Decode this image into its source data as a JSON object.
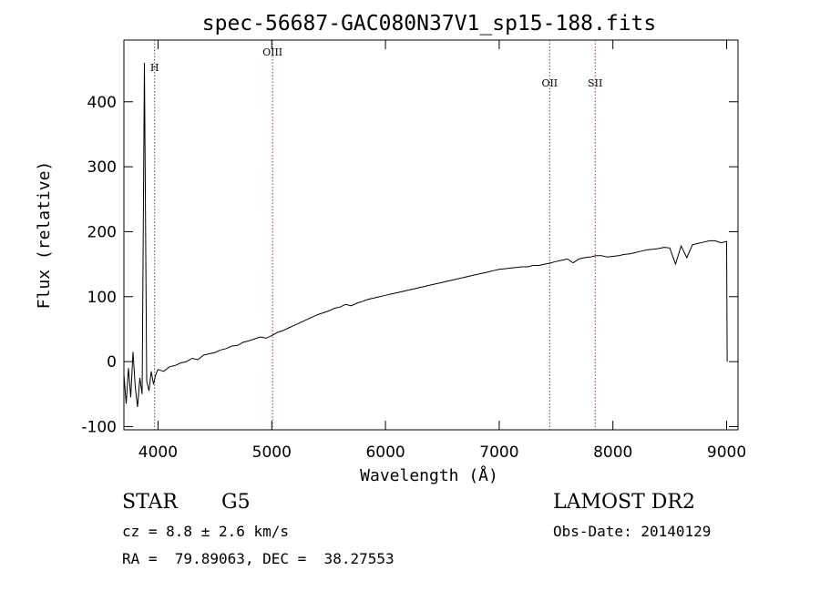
{
  "chart_data": {
    "type": "line",
    "title": "spec-56687-GAC080N37V1_sp15-188.fits",
    "xlabel": "Wavelength (Å)",
    "ylabel": "Flux (relative)",
    "xlim": [
      3700,
      9100
    ],
    "ylim": [
      -105,
      495
    ],
    "x_ticks": [
      4000,
      5000,
      6000,
      7000,
      8000,
      9000
    ],
    "y_ticks": [
      -100,
      0,
      100,
      200,
      300,
      400
    ],
    "grid": false,
    "line_color": "#000000",
    "reference_line_color": "#b22222",
    "reference_lines": [
      {
        "label": "H",
        "wavelength": 3970
      },
      {
        "label": "OIII",
        "wavelength": 5007
      },
      {
        "label": "OII",
        "wavelength": 7444
      },
      {
        "label": "SII",
        "wavelength": 7844
      }
    ],
    "series": [
      {
        "x": [
          3700,
          3720,
          3740,
          3760,
          3780,
          3800,
          3820,
          3840,
          3860,
          3880,
          3900,
          3920,
          3940,
          3960,
          3980,
          4000,
          4050,
          4100,
          4150,
          4200,
          4250,
          4300,
          4350,
          4400,
          4450,
          4500,
          4550,
          4600,
          4650,
          4700,
          4750,
          4800,
          4850,
          4900,
          4950,
          5000,
          5050,
          5100,
          5150,
          5200,
          5250,
          5300,
          5350,
          5400,
          5450,
          5500,
          5550,
          5600,
          5650,
          5700,
          5750,
          5800,
          5850,
          5900,
          5950,
          6000,
          6050,
          6100,
          6150,
          6200,
          6250,
          6300,
          6350,
          6400,
          6450,
          6500,
          6550,
          6600,
          6650,
          6700,
          6750,
          6800,
          6850,
          6900,
          6950,
          7000,
          7050,
          7100,
          7150,
          7200,
          7250,
          7300,
          7350,
          7400,
          7450,
          7500,
          7550,
          7600,
          7650,
          7700,
          7750,
          7800,
          7850,
          7900,
          7950,
          8000,
          8050,
          8100,
          8150,
          8200,
          8250,
          8300,
          8350,
          8400,
          8450,
          8500,
          8550,
          8600,
          8650,
          8700,
          8750,
          8800,
          8850,
          8900,
          8950,
          9000,
          9005
        ],
        "y": [
          -20,
          -65,
          -10,
          -55,
          15,
          -40,
          -70,
          -25,
          -50,
          460,
          -30,
          -45,
          -15,
          -35,
          -20,
          -12,
          -15,
          -8,
          -6,
          -2,
          0,
          5,
          3,
          10,
          12,
          14,
          18,
          20,
          24,
          25,
          30,
          32,
          35,
          38,
          36,
          40,
          45,
          48,
          52,
          56,
          60,
          64,
          68,
          72,
          75,
          78,
          82,
          84,
          88,
          86,
          90,
          93,
          96,
          98,
          100,
          102,
          104,
          106,
          108,
          110,
          112,
          114,
          116,
          118,
          120,
          122,
          124,
          126,
          128,
          130,
          132,
          134,
          136,
          138,
          140,
          142,
          143,
          144,
          145,
          146,
          146,
          148,
          148,
          150,
          152,
          154,
          156,
          158,
          152,
          158,
          160,
          161,
          163,
          163,
          161,
          162,
          163,
          165,
          166,
          168,
          170,
          172,
          173,
          174,
          176,
          175,
          150,
          178,
          160,
          180,
          182,
          184,
          186,
          186,
          183,
          185,
          0
        ]
      }
    ]
  },
  "info": {
    "class_label": "STAR",
    "subclass": "G5",
    "survey": "LAMOST DR2",
    "cz": "cz = 8.8 ± 2.6 km/s",
    "obs_date": "Obs-Date: 20140129",
    "coords": "RA =  79.89063, DEC =  38.27553"
  }
}
